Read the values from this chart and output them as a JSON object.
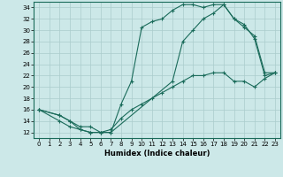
{
  "xlabel": "Humidex (Indice chaleur)",
  "bg_color": "#cce8e8",
  "grid_color": "#aacccc",
  "line_color": "#1a6b5a",
  "xlim": [
    -0.5,
    23.5
  ],
  "ylim": [
    11,
    35
  ],
  "xticks": [
    0,
    1,
    2,
    3,
    4,
    5,
    6,
    7,
    8,
    9,
    10,
    11,
    12,
    13,
    14,
    15,
    16,
    17,
    18,
    19,
    20,
    21,
    22,
    23
  ],
  "yticks": [
    12,
    14,
    16,
    18,
    20,
    22,
    24,
    26,
    28,
    30,
    32,
    34
  ],
  "curve1_x": [
    0,
    2,
    3,
    4,
    5,
    6,
    7,
    8,
    9,
    10,
    11,
    12,
    13,
    14,
    15,
    16,
    17,
    18,
    19,
    20,
    21,
    22,
    23
  ],
  "curve1_y": [
    16,
    15,
    14,
    12.5,
    12,
    12,
    12,
    17,
    21,
    30.5,
    31.5,
    32,
    33.5,
    34.5,
    34.5,
    34,
    34.5,
    34.5,
    32,
    30.5,
    29,
    22.5,
    22.5
  ],
  "curve2_x": [
    0,
    2,
    3,
    4,
    5,
    6,
    7,
    13,
    14,
    15,
    16,
    17,
    18,
    19,
    20,
    21,
    22,
    23
  ],
  "curve2_y": [
    16,
    14,
    13,
    12.5,
    12,
    12,
    12,
    21,
    28,
    30,
    32,
    33,
    34.5,
    32,
    31,
    28.5,
    22,
    22.5
  ],
  "curve3_x": [
    0,
    2,
    3,
    4,
    5,
    6,
    7,
    8,
    9,
    10,
    11,
    12,
    13,
    14,
    15,
    16,
    17,
    18,
    19,
    20,
    21,
    22,
    23
  ],
  "curve3_y": [
    16,
    15,
    14,
    13,
    13,
    12,
    12.5,
    14.5,
    16,
    17,
    18,
    19,
    20,
    21,
    22,
    22,
    22.5,
    22.5,
    21,
    21,
    20,
    21.5,
    22.5
  ],
  "tick_fontsize": 5,
  "xlabel_fontsize": 6,
  "marker_size": 2.5,
  "linewidth": 0.8
}
